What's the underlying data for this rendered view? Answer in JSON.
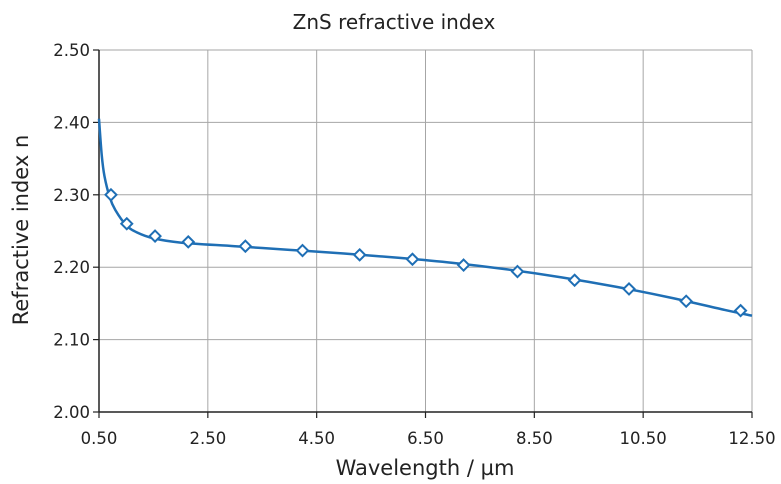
{
  "chart_data": {
    "type": "line",
    "title": "ZnS refractive index",
    "xlabel": "Wavelength / µm",
    "ylabel": "Refractive index n",
    "xlim": [
      0.5,
      12.5
    ],
    "ylim": [
      2.0,
      2.5
    ],
    "x_ticks": [
      "0.50",
      "2.50",
      "4.50",
      "6.50",
      "8.50",
      "10.50",
      "12.50"
    ],
    "y_ticks": [
      "2.00",
      "2.10",
      "2.20",
      "2.30",
      "2.40",
      "2.50"
    ],
    "grid": true,
    "legend": "none",
    "series": [
      {
        "color": "#1f6fb5",
        "line": {
          "x": [
            0.5,
            0.55,
            0.6,
            0.7,
            0.8,
            1.0,
            1.2,
            1.5,
            2.0,
            3.0,
            4.0,
            5.0,
            6.0,
            7.0,
            8.0,
            9.0,
            10.0,
            11.0,
            12.0,
            12.5
          ],
          "y": [
            2.405,
            2.355,
            2.326,
            2.296,
            2.279,
            2.258,
            2.248,
            2.24,
            2.234,
            2.229,
            2.224,
            2.219,
            2.213,
            2.206,
            2.197,
            2.186,
            2.173,
            2.158,
            2.141,
            2.133
          ]
        },
        "markers": {
          "x": [
            0.72,
            1.01,
            1.53,
            2.14,
            3.19,
            4.24,
            5.29,
            6.26,
            7.2,
            8.19,
            9.24,
            10.24,
            11.29,
            12.29
          ],
          "y": [
            2.3,
            2.26,
            2.243,
            2.235,
            2.229,
            2.223,
            2.217,
            2.211,
            2.203,
            2.194,
            2.182,
            2.17,
            2.153,
            2.14
          ]
        }
      }
    ]
  }
}
